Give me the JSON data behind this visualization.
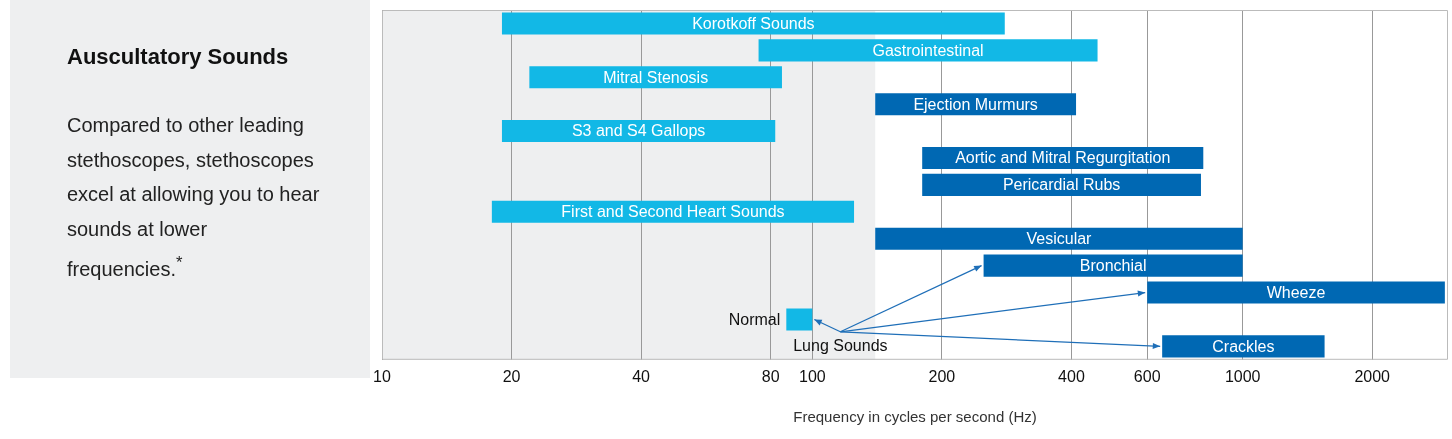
{
  "chart_data": {
    "type": "bar",
    "orientation": "horizontal",
    "title": "Auscultatory Sounds",
    "subtitle": "Compared to other leading stethoscopes, stethoscopes excel at allowing you to hear sounds at lower frequencies.$^{*}$",
    "xlabel": "Frequency in cycles per second (Hz)",
    "categories": [
      "Korotkoff Sounds",
      "Gastrointestinal",
      "Mitral Stenosis",
      "Ejection Murmurs",
      "S3 and S4 Gallops",
      "Aortic and Mitral Regurgitation",
      "Pericardial Rubs",
      "First and Second Heart Sounds",
      "Vesicular",
      "Bronchial",
      "Wheeze",
      "Normal",
      "Crackles"
    ],
    "base": [
      19,
      75,
      22,
      140,
      19,
      180,
      180,
      18,
      140,
      250,
      600,
      87,
      650
    ],
    "values": [
      261,
      385,
      63,
      270,
      63,
      630,
      620,
      107,
      860,
      750,
      2350,
      13,
      900
    ],
    "colors": [
      "#12b8e6",
      "#12b8e6",
      "#12b8e6",
      "#0068b3",
      "#12b8e6",
      "#0068b3",
      "#0068b3",
      "#12b8e6",
      "#0068b3",
      "#0068b3",
      "#0068b3",
      "#12b8e6",
      "#0068b3"
    ],
    "xlim": [
      10,
      3000
    ],
    "xticks": [
      10,
      20,
      40,
      80,
      100,
      200,
      400,
      600,
      1000,
      2000
    ],
    "bands": [
      {
        "axis": "x",
        "from": 10,
        "to": 140,
        "color": "#eeeff0"
      }
    ],
    "annotations": [
      {
        "text": "Lung Sounds",
        "x": 600,
        "y": "Wheeze"
      }
    ],
    "log": "x",
    "grid": "x",
    "legend": false
  }
}
